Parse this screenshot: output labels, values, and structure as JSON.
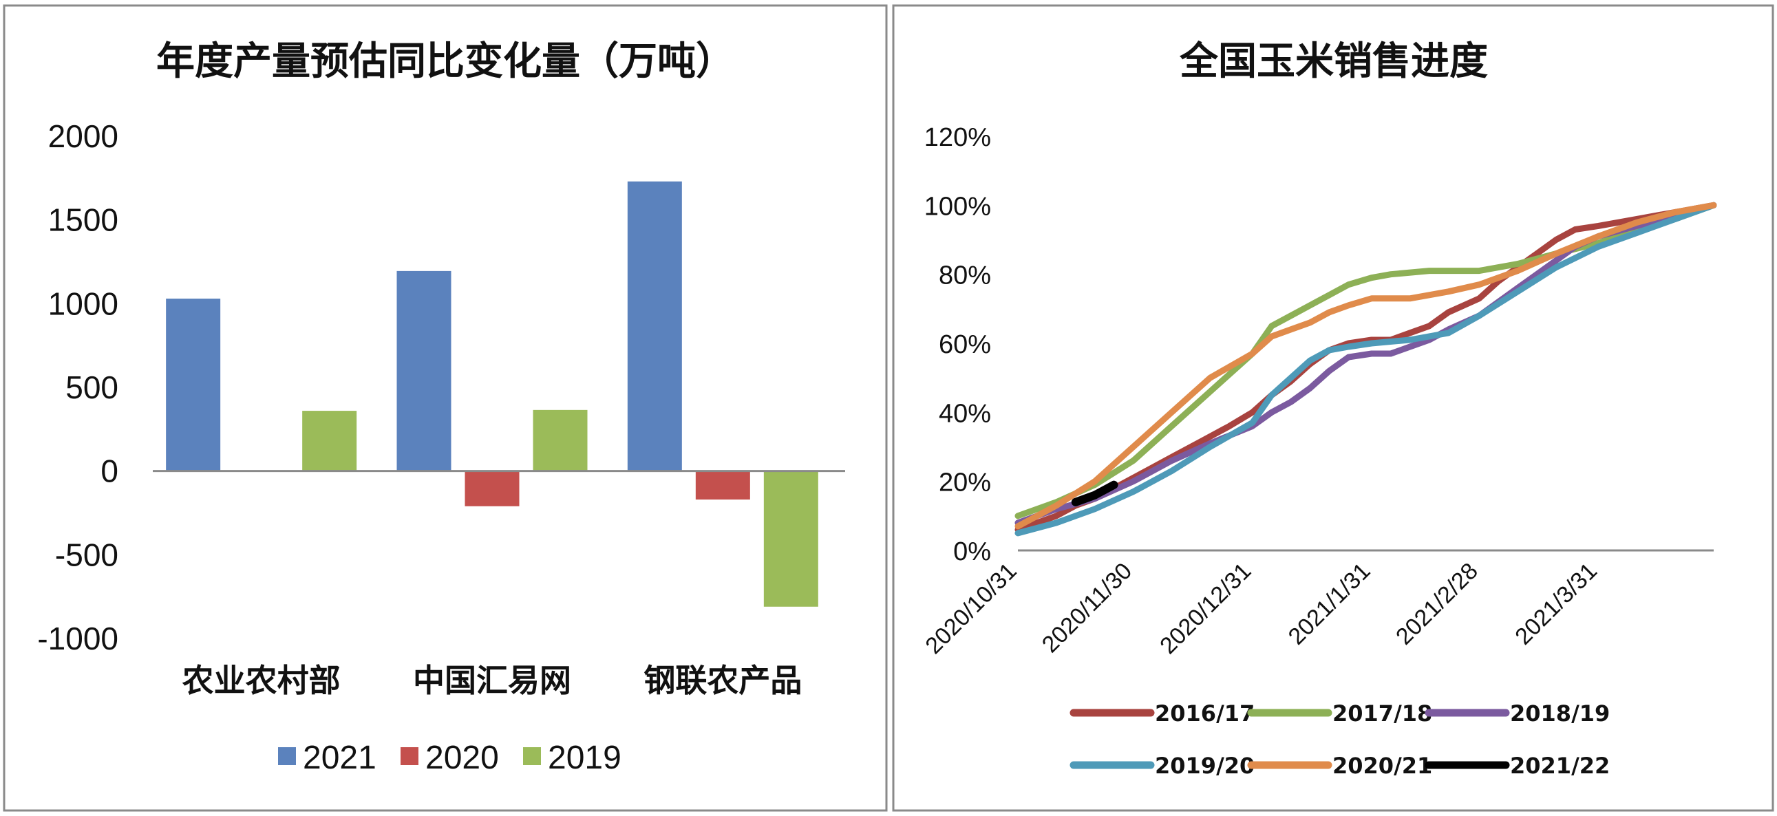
{
  "chart_data": [
    {
      "type": "bar",
      "title": "年度产量预估同比变化量（万吨）",
      "categories": [
        "农业农村部",
        "中国汇易网",
        "钢联农产品"
      ],
      "series": [
        {
          "name": "2021",
          "color": "#5B82BD",
          "values": [
            1030,
            1195,
            1730
          ]
        },
        {
          "name": "2020",
          "color": "#C4504D",
          "values": [
            0,
            -210,
            -170
          ]
        },
        {
          "name": "2019",
          "color": "#9BBB59",
          "values": [
            360,
            365,
            -810
          ]
        }
      ],
      "yticks": [
        "2000",
        "1500",
        "1000",
        "500",
        "0",
        "-500",
        "-1000"
      ],
      "ylim": [
        -1000,
        2000
      ],
      "legend_position": "bottom"
    },
    {
      "type": "line",
      "title": "全国玉米销售进度",
      "x_ticks": [
        "2020/10/31",
        "2020/11/30",
        "2020/12/31",
        "2021/1/31",
        "2021/2/28",
        "2021/3/31"
      ],
      "yticks": [
        "120%",
        "100%",
        "80%",
        "60%",
        "40%",
        "20%",
        "0%"
      ],
      "ylim": [
        0,
        120
      ],
      "legend_position": "bottom",
      "series": [
        {
          "name": "2016/17",
          "color": "#A8433F",
          "x": [
            "2020/10/31",
            "2020/11/5",
            "2020/11/10",
            "2020/11/15",
            "2020/11/20",
            "2020/11/25",
            "2020/11/30",
            "2020/12/5",
            "2020/12/10",
            "2020/12/15",
            "2020/12/20",
            "2020/12/25",
            "2020/12/31",
            "2021/1/5",
            "2021/1/10",
            "2021/1/15",
            "2021/1/20",
            "2021/1/25",
            "2021/1/31",
            "2021/2/5",
            "2021/2/10",
            "2021/2/15",
            "2021/2/20",
            "2021/2/28",
            "2021/3/5",
            "2021/3/10",
            "2021/3/15",
            "2021/3/20",
            "2021/3/25",
            "2021/3/31",
            "2021/4/10",
            "2021/4/20",
            "2021/4/30"
          ],
          "y": [
            6,
            8,
            10,
            13,
            15,
            18,
            21,
            24,
            27,
            30,
            33,
            36,
            40,
            45,
            49,
            54,
            58,
            60,
            61,
            61,
            63,
            65,
            69,
            73,
            78,
            82,
            86,
            90,
            93,
            94,
            96,
            98,
            100
          ]
        },
        {
          "name": "2017/18",
          "color": "#8DB056",
          "x": [
            "2020/10/31",
            "2020/11/10",
            "2020/11/20",
            "2020/11/30",
            "2020/12/10",
            "2020/12/20",
            "2020/12/31",
            "2021/1/5",
            "2021/1/10",
            "2021/1/15",
            "2021/1/20",
            "2021/1/25",
            "2021/1/31",
            "2021/2/5",
            "2021/2/15",
            "2021/2/28",
            "2021/3/10",
            "2021/3/20",
            "2021/3/31",
            "2021/4/10",
            "2021/4/20",
            "2021/4/30"
          ],
          "y": [
            10,
            14,
            19,
            26,
            36,
            46,
            57,
            65,
            68,
            71,
            74,
            77,
            79,
            80,
            81,
            81,
            83,
            86,
            89,
            93,
            96,
            100
          ]
        },
        {
          "name": "2018/19",
          "color": "#7B5A9F",
          "x": [
            "2020/10/31",
            "2020/11/10",
            "2020/11/20",
            "2020/11/30",
            "2020/12/10",
            "2020/12/20",
            "2020/12/31",
            "2021/1/5",
            "2021/1/10",
            "2021/1/15",
            "2021/1/20",
            "2021/1/25",
            "2021/1/31",
            "2021/2/5",
            "2021/2/10",
            "2021/2/15",
            "2021/2/20",
            "2021/2/28",
            "2021/3/5",
            "2021/3/10",
            "2021/3/15",
            "2021/3/20",
            "2021/3/25",
            "2021/3/31",
            "2021/4/10",
            "2021/4/20",
            "2021/4/30"
          ],
          "y": [
            8,
            12,
            15,
            20,
            26,
            31,
            36,
            40,
            43,
            47,
            52,
            56,
            57,
            57,
            59,
            61,
            64,
            68,
            72,
            76,
            80,
            84,
            88,
            91,
            94,
            97,
            100
          ]
        },
        {
          "name": "2019/20",
          "color": "#4E9AB8",
          "x": [
            "2020/10/31",
            "2020/11/10",
            "2020/11/20",
            "2020/11/30",
            "2020/12/10",
            "2020/12/20",
            "2020/12/31",
            "2021/1/5",
            "2021/1/10",
            "2021/1/15",
            "2021/1/20",
            "2021/1/25",
            "2021/1/31",
            "2021/2/10",
            "2021/2/20",
            "2021/2/28",
            "2021/3/10",
            "2021/3/20",
            "2021/3/31",
            "2021/4/10",
            "2021/4/20",
            "2021/4/30"
          ],
          "y": [
            5,
            8,
            12,
            17,
            23,
            30,
            37,
            45,
            50,
            55,
            58,
            59,
            60,
            61,
            63,
            68,
            75,
            82,
            88,
            92,
            96,
            100
          ]
        },
        {
          "name": "2020/21",
          "color": "#E08B4B",
          "x": [
            "2020/10/31",
            "2020/11/10",
            "2020/11/20",
            "2020/11/30",
            "2020/12/10",
            "2020/12/20",
            "2020/12/31",
            "2021/1/5",
            "2021/1/10",
            "2021/1/15",
            "2021/1/20",
            "2021/1/25",
            "2021/1/31",
            "2021/2/5",
            "2021/2/10",
            "2021/2/15",
            "2021/2/20",
            "2021/2/28",
            "2021/3/10",
            "2021/3/20",
            "2021/3/31",
            "2021/4/10",
            "2021/4/20",
            "2021/4/30"
          ],
          "y": [
            7,
            13,
            20,
            30,
            40,
            50,
            57,
            62,
            64,
            66,
            69,
            71,
            73,
            73,
            73,
            74,
            75,
            77,
            81,
            86,
            91,
            95,
            98,
            100
          ]
        },
        {
          "name": "2021/22",
          "color": "#000000",
          "x": [
            "2020/11/15",
            "2020/11/20",
            "2020/11/25"
          ],
          "y": [
            14,
            16,
            19
          ]
        }
      ]
    }
  ]
}
